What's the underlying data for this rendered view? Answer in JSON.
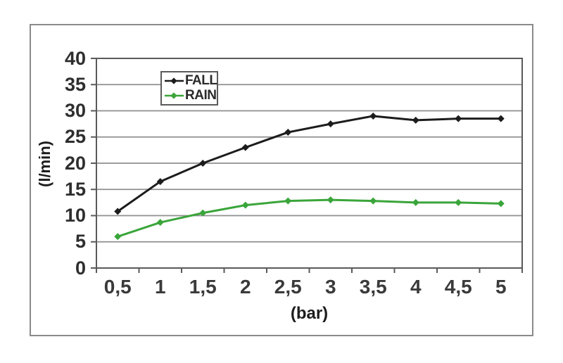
{
  "chart_data": {
    "type": "line",
    "title": "",
    "xlabel": "(bar)",
    "ylabel": "(l/min)",
    "categories": [
      "0,5",
      "1",
      "1,5",
      "2",
      "2,5",
      "3",
      "3,5",
      "4",
      "4,5",
      "5"
    ],
    "x_numeric": [
      0.5,
      1,
      1.5,
      2,
      2.5,
      3,
      3.5,
      4,
      4.5,
      5
    ],
    "series": [
      {
        "name": "FALL",
        "color": "#1c1c1c",
        "marker": "diamond",
        "values": [
          10.8,
          16.5,
          20,
          23,
          25.9,
          27.5,
          29,
          28.2,
          28.5,
          28.5
        ]
      },
      {
        "name": "RAIN",
        "color": "#3aa53a",
        "marker": "diamond",
        "values": [
          6,
          8.7,
          10.5,
          12,
          12.8,
          13,
          12.8,
          12.5,
          12.5,
          12.3
        ]
      }
    ],
    "ylim": [
      0,
      40
    ],
    "ytick_step": 5,
    "ytick_labels": [
      "0",
      "5",
      "10",
      "15",
      "20",
      "25",
      "30",
      "35",
      "40"
    ],
    "grid": true,
    "legend_position": "inside-top-left",
    "colors": {
      "grid": "#8f8f8f",
      "axis": "#5a5a5a",
      "figure_border": "#8a8a8a",
      "background": "#ffffff"
    }
  }
}
